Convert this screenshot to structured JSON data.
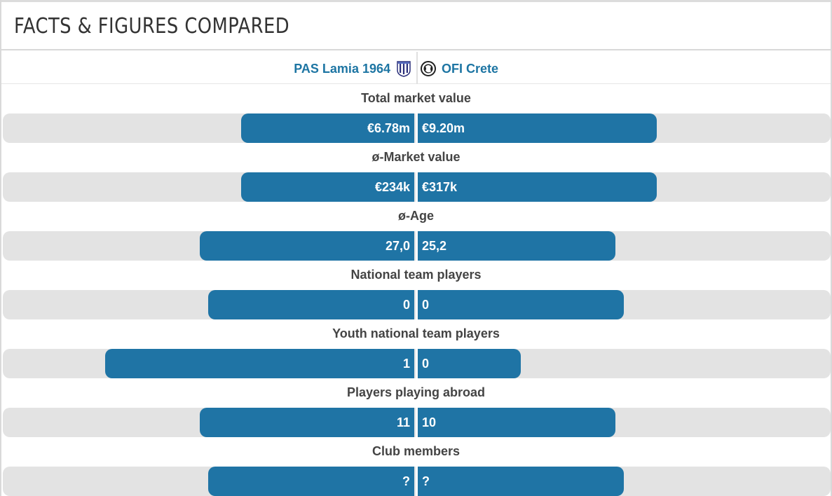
{
  "header": {
    "title": "FACTS & FIGURES COMPARED"
  },
  "teams": {
    "left": {
      "name": "PAS Lamia 1964",
      "crest": "pas-lamia-crest-icon"
    },
    "right": {
      "name": "OFI Crete",
      "crest": "ofi-crete-crest-icon"
    }
  },
  "colors": {
    "bar": "#1f74a5",
    "track": "#e3e3e3",
    "team_link": "#1d75a3"
  },
  "comparisons": [
    {
      "label": "Total market value",
      "left": "€6.78m",
      "right": "€9.20m",
      "left_share": 0.42,
      "right_share": 0.58
    },
    {
      "label": "ø-Market value",
      "left": "€234k",
      "right": "€317k",
      "left_share": 0.42,
      "right_share": 0.58
    },
    {
      "label": "ø-Age",
      "left": "27,0",
      "right": "25,2",
      "left_share": 0.52,
      "right_share": 0.48
    },
    {
      "label": "National team players",
      "left": "0",
      "right": "0",
      "left_share": 0.5,
      "right_share": 0.5
    },
    {
      "label": "Youth national team players",
      "left": "1",
      "right": "0",
      "left_share": 0.75,
      "right_share": 0.25
    },
    {
      "label": "Players playing abroad",
      "left": "11",
      "right": "10",
      "left_share": 0.52,
      "right_share": 0.48
    },
    {
      "label": "Club members",
      "left": "?",
      "right": "?",
      "left_share": 0.5,
      "right_share": 0.5
    }
  ]
}
